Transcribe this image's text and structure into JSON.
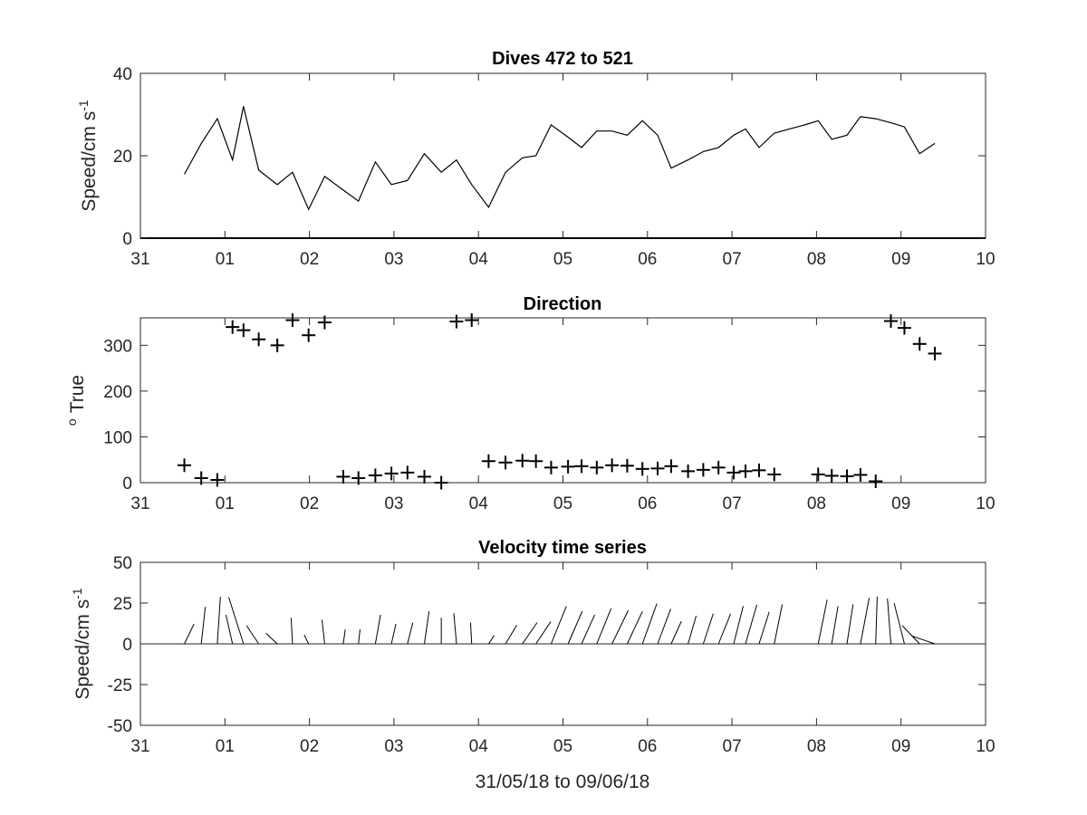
{
  "chart_data": [
    {
      "type": "line",
      "title": "Dives 472 to 521",
      "ylabel": "Speed/cm s",
      "ylabel_sup": "-1",
      "xlim": [
        0,
        10
      ],
      "ylim": [
        0,
        40
      ],
      "xticklabels": [
        "31",
        "01",
        "02",
        "03",
        "04",
        "05",
        "06",
        "07",
        "08",
        "09",
        "10"
      ],
      "yticks": [
        0,
        20,
        40
      ],
      "yticklabels": [
        "0",
        "20",
        "40"
      ],
      "series": [
        {
          "x": [
            0.52,
            0.72,
            0.91,
            1.09,
            1.22,
            1.4,
            1.62,
            1.8,
            1.99,
            2.18,
            2.58,
            2.78,
            2.97,
            3.16,
            3.36,
            3.56,
            3.74,
            3.92,
            4.12,
            4.32,
            4.52,
            4.68,
            4.86,
            5.06,
            5.22,
            5.4,
            5.58,
            5.76,
            5.94,
            6.12,
            6.28,
            6.48,
            6.66,
            6.84,
            7.02,
            7.16,
            7.32,
            7.5,
            7.68,
            7.86,
            8.02,
            8.18,
            8.36,
            8.52,
            8.7,
            8.88,
            9.04,
            9.22,
            9.4
          ],
          "y": [
            15.5,
            23,
            29,
            19,
            32,
            16.5,
            13,
            16,
            7,
            15,
            9,
            18.5,
            13,
            14,
            20.5,
            16,
            19,
            13,
            7.5,
            16,
            19.5,
            20,
            27.5,
            24.5,
            22,
            26,
            26,
            25,
            28.5,
            25,
            17,
            19,
            21,
            22,
            25,
            26.5,
            22,
            25.5,
            26.5,
            27.5,
            28.5,
            24,
            25,
            29.5,
            29,
            28,
            27,
            20.5,
            23
          ]
        }
      ]
    },
    {
      "type": "scatter",
      "title": "Direction",
      "ylabel": "True",
      "ylabel_sup": "o",
      "xlim": [
        0,
        10
      ],
      "ylim": [
        0,
        360
      ],
      "xticklabels": [
        "31",
        "01",
        "02",
        "03",
        "04",
        "05",
        "06",
        "07",
        "08",
        "09",
        "10"
      ],
      "yticks": [
        0,
        100,
        200,
        300
      ],
      "yticklabels": [
        "0",
        "100",
        "200",
        "300"
      ],
      "marker": "+",
      "series": [
        {
          "x": [
            0.52,
            0.72,
            0.91,
            1.09,
            1.22,
            1.4,
            1.62,
            1.8,
            1.99,
            2.18,
            2.4,
            2.58,
            2.78,
            2.97,
            3.16,
            3.36,
            3.56,
            3.74,
            3.92,
            4.12,
            4.32,
            4.52,
            4.68,
            4.86,
            5.06,
            5.22,
            5.4,
            5.58,
            5.76,
            5.94,
            6.12,
            6.28,
            6.48,
            6.66,
            6.84,
            7.02,
            7.16,
            7.32,
            7.5,
            8.02,
            8.18,
            8.36,
            8.52,
            8.7,
            8.88,
            9.04,
            9.22,
            9.4
          ],
          "y": [
            38,
            10,
            6,
            340,
            333,
            313,
            300,
            355,
            322,
            350,
            13,
            10,
            16,
            20,
            22,
            13,
            0,
            352,
            355,
            47,
            44,
            48,
            47,
            33,
            35,
            36,
            33,
            38,
            37,
            30,
            31,
            36,
            25,
            28,
            33,
            22,
            25,
            27,
            18,
            18,
            15,
            14,
            17,
            3,
            353,
            338,
            303,
            282
          ]
        }
      ]
    },
    {
      "type": "quiver",
      "title": "Velocity time series",
      "ylabel": "Speed/cm s",
      "ylabel_sup": "-1",
      "xlabel": "31/05/18 to 09/06/18",
      "xlim": [
        0,
        10
      ],
      "ylim": [
        -50,
        50
      ],
      "xticklabels": [
        "31",
        "01",
        "02",
        "03",
        "04",
        "05",
        "06",
        "07",
        "08",
        "09",
        "10"
      ],
      "yticks": [
        -50,
        -25,
        0,
        25,
        50
      ],
      "yticklabels": [
        "-50",
        "-25",
        "0",
        "25",
        "50"
      ],
      "baseline": 0
    }
  ]
}
